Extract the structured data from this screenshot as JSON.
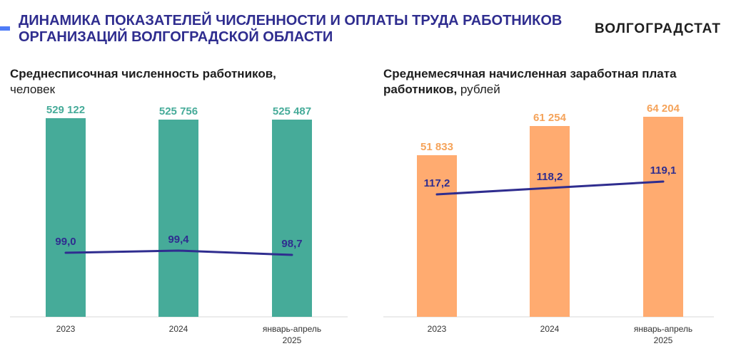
{
  "header": {
    "title_line1": "ДИНАМИКА ПОКАЗАТЕЛЕЙ ЧИСЛЕННОСТИ И ОПЛАТЫ ТРУДА РАБОТНИКОВ",
    "title_line2": "ОРГАНИЗАЦИЙ ВОЛГОГРАДСКОЙ ОБЛАСТИ",
    "brand": "ВОЛГОГРАДСТАТ"
  },
  "colors": {
    "title": "#2f2d8f",
    "accent": "#4f7cf7",
    "bar_left": "#46ab99",
    "bar_right": "#ffab70",
    "label_left": "#46ab99",
    "label_right": "#f5a35a",
    "line": "#2f2d8f"
  },
  "chart_data": [
    {
      "type": "bar",
      "title_bold": "Среднесписочная численность работников,",
      "title_unit": "человек",
      "categories": [
        [
          "2023"
        ],
        [
          "2024"
        ],
        [
          "январь-апрель",
          "2025"
        ]
      ],
      "values": [
        529122,
        525756,
        525487
      ],
      "value_labels": [
        "529 122",
        "525 756",
        "525 487"
      ],
      "line_series": {
        "values": [
          99.0,
          99.4,
          98.7
        ],
        "labels": [
          "99,0",
          "99,4",
          "98,7"
        ]
      }
    },
    {
      "type": "bar",
      "title_bold": "Среднемесячная начисленная заработная плата работников,",
      "title_unit": "рублей",
      "categories": [
        [
          "2023"
        ],
        [
          "2024"
        ],
        [
          "январь-апрель",
          "2025"
        ]
      ],
      "values": [
        51833,
        61254,
        64204
      ],
      "value_labels": [
        "51 833",
        "61 254",
        "64 204"
      ],
      "line_series": {
        "values": [
          117.2,
          118.2,
          119.1
        ],
        "labels": [
          "117,2",
          "118,2",
          "119,1"
        ]
      }
    }
  ]
}
